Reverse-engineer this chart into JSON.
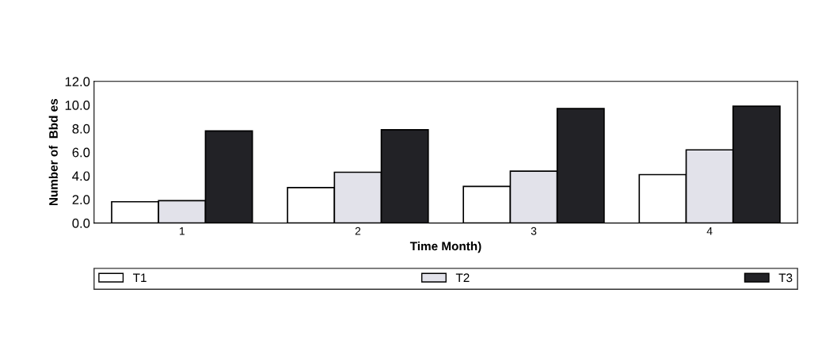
{
  "chart_data": {
    "type": "bar",
    "xlabel": "Time Month)",
    "ylabel": "Number of  Bbd es",
    "categories": [
      "1",
      "2",
      "3",
      "4"
    ],
    "series": [
      {
        "name": "T1",
        "color": "#ffffff",
        "values": [
          1.8,
          3.0,
          3.1,
          4.1
        ]
      },
      {
        "name": "T2",
        "color": "#e2e2ea",
        "values": [
          1.9,
          4.3,
          4.4,
          6.2
        ]
      },
      {
        "name": "T3",
        "color": "#222226",
        "values": [
          7.8,
          7.9,
          9.7,
          9.9
        ]
      }
    ],
    "ylim": [
      0,
      12
    ],
    "yticks": [
      {
        "value": 0,
        "label": "0.0"
      },
      {
        "value": 2,
        "label": "2.0"
      },
      {
        "value": 4,
        "label": "4.0"
      },
      {
        "value": 6,
        "label": "6.0"
      },
      {
        "value": 8,
        "label": "8.0"
      },
      {
        "value": 10,
        "label": "10.0"
      },
      {
        "value": 12,
        "label": "12.0"
      }
    ],
    "grid": false,
    "legend": "bottom"
  }
}
